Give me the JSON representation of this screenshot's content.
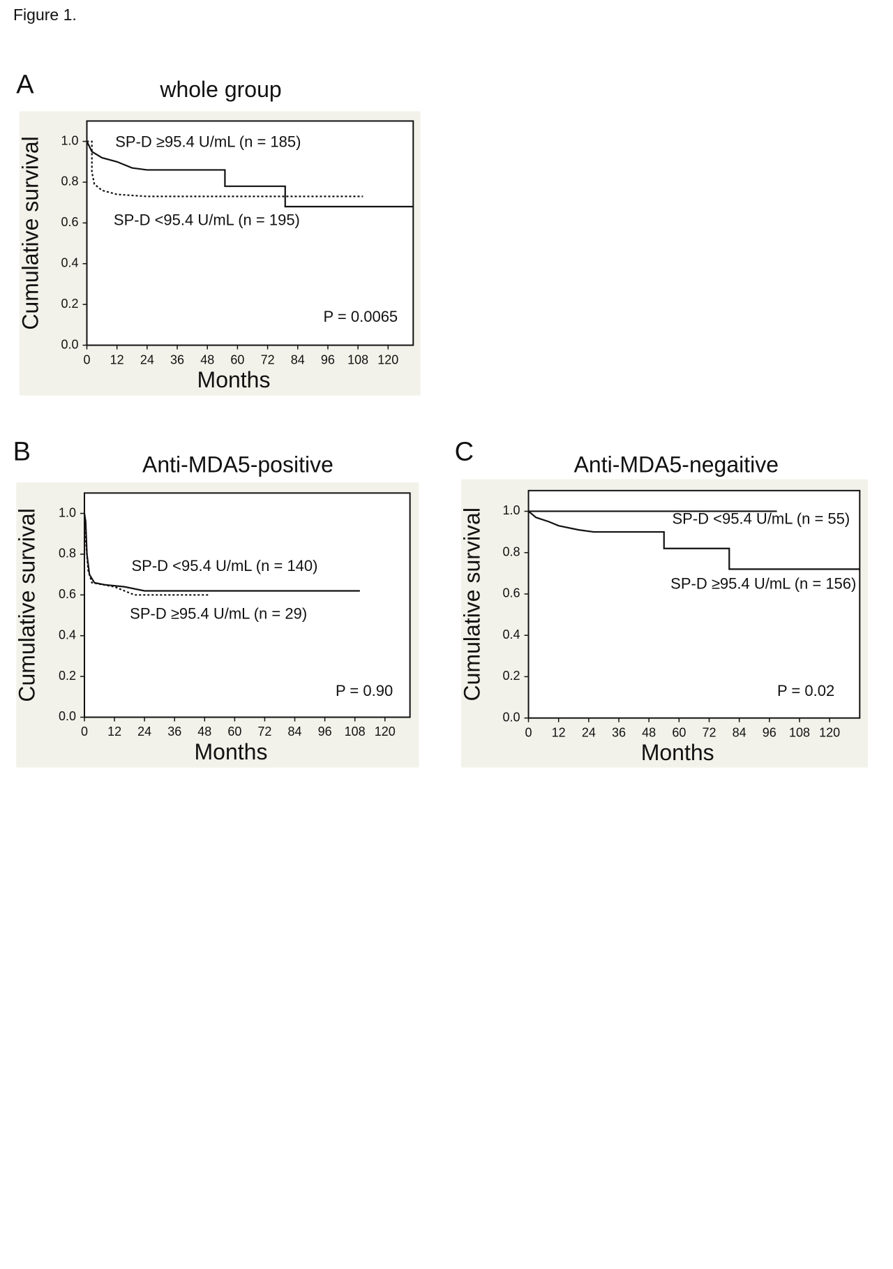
{
  "figure_label": "Figure 1.",
  "chart_data": [
    {
      "type": "line",
      "panel": "A",
      "title": "whole group",
      "xlabel": "Months",
      "ylabel": "Cumulative survival",
      "xlim": [
        0,
        130
      ],
      "ylim": [
        0,
        1.1
      ],
      "xticks": [
        0,
        12,
        24,
        36,
        48,
        60,
        72,
        84,
        96,
        108,
        120
      ],
      "yticks": [
        {
          "value": 0,
          "label": "0.0"
        },
        {
          "value": 0.2,
          "label": "0.2"
        },
        {
          "value": 0.4,
          "label": "0.4"
        },
        {
          "value": 0.6,
          "label": "0.6"
        },
        {
          "value": 0.8,
          "label": "0.8"
        },
        {
          "value": 1,
          "label": "1.0"
        }
      ],
      "annotation": "P = 0.0065",
      "series": [
        {
          "name": "SP-D ≥95.4 U/mL (n = 185)",
          "color": "#111111",
          "style": "solid",
          "x": [
            0,
            2,
            6,
            12,
            18,
            24,
            55,
            55,
            79,
            79,
            130
          ],
          "values": [
            1.0,
            0.95,
            0.92,
            0.9,
            0.87,
            0.86,
            0.86,
            0.78,
            0.78,
            0.68,
            0.68
          ]
        },
        {
          "name": "SP-D <95.4 U/mL (n = 195)",
          "color": "#111111",
          "style": "dotted",
          "x": [
            0,
            2,
            2,
            3,
            6,
            12,
            24,
            110
          ],
          "values": [
            1.0,
            1.0,
            0.85,
            0.79,
            0.76,
            0.74,
            0.73,
            0.73
          ]
        }
      ]
    },
    {
      "type": "line",
      "panel": "B",
      "title": "Anti-MDA5-positive",
      "xlabel": "Months",
      "ylabel": "Cumulative survival",
      "xlim": [
        0,
        130
      ],
      "ylim": [
        0,
        1.1
      ],
      "xticks": [
        0,
        12,
        24,
        36,
        48,
        60,
        72,
        84,
        96,
        108,
        120
      ],
      "yticks": [
        {
          "value": 0,
          "label": "0.0"
        },
        {
          "value": 0.2,
          "label": "0.2"
        },
        {
          "value": 0.4,
          "label": "0.4"
        },
        {
          "value": 0.6,
          "label": "0.6"
        },
        {
          "value": 0.8,
          "label": "0.8"
        },
        {
          "value": 1,
          "label": "1.0"
        }
      ],
      "annotation": "P = 0.90",
      "series": [
        {
          "name": "SP-D <95.4 U/mL (n = 140)",
          "color": "#111111",
          "style": "solid",
          "x": [
            0,
            0.5,
            1,
            2,
            4,
            8,
            16,
            24,
            110
          ],
          "values": [
            1.0,
            0.96,
            0.8,
            0.7,
            0.66,
            0.65,
            0.64,
            0.62,
            0.62
          ]
        },
        {
          "name": "SP-D ≥95.4 U/mL (n = 29)",
          "color": "#111111",
          "style": "dotted",
          "x": [
            0,
            1.5,
            3,
            12,
            20,
            50
          ],
          "values": [
            0.95,
            0.72,
            0.66,
            0.64,
            0.6,
            0.6
          ]
        }
      ]
    },
    {
      "type": "line",
      "panel": "C",
      "title": "Anti-MDA5-negaitive",
      "xlabel": "Months",
      "ylabel": "Cumulative survival",
      "xlim": [
        0,
        132
      ],
      "ylim": [
        0,
        1.1
      ],
      "xticks": [
        0,
        12,
        24,
        36,
        48,
        60,
        72,
        84,
        96,
        108,
        120
      ],
      "yticks": [
        {
          "value": 0,
          "label": "0.0"
        },
        {
          "value": 0.2,
          "label": "0.2"
        },
        {
          "value": 0.4,
          "label": "0.4"
        },
        {
          "value": 0.6,
          "label": "0.6"
        },
        {
          "value": 0.8,
          "label": "0.8"
        },
        {
          "value": 1,
          "label": "1.0"
        }
      ],
      "annotation": "P = 0.02",
      "series": [
        {
          "name": "SP-D <95.4 U/mL (n = 55)",
          "color": "#111111",
          "style": "solid",
          "x": [
            0,
            99
          ],
          "values": [
            1.0,
            1.0
          ]
        },
        {
          "name": "SP-D ≥95.4 U/mL (n = 156)",
          "color": "#111111",
          "style": "solid",
          "x": [
            0,
            3,
            8,
            12,
            20,
            26,
            54,
            54,
            80,
            80,
            132
          ],
          "values": [
            1.0,
            0.97,
            0.95,
            0.93,
            0.91,
            0.9,
            0.9,
            0.82,
            0.82,
            0.72,
            0.72
          ]
        }
      ]
    }
  ]
}
